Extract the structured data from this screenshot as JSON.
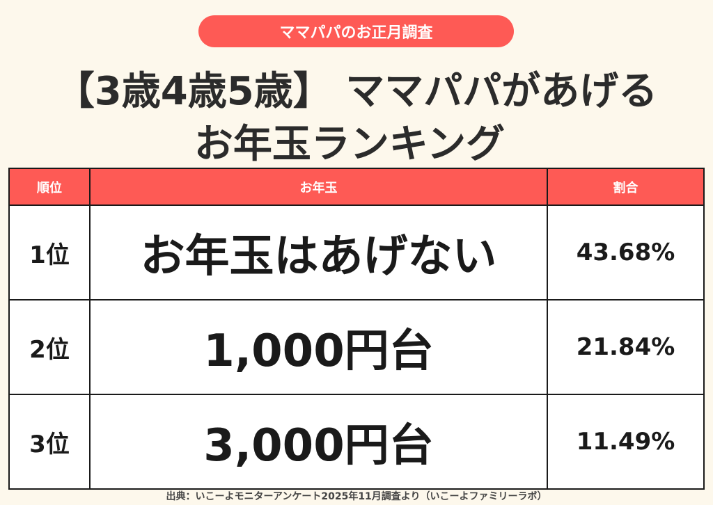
{
  "header_pill": "ママパパのお正月調査",
  "title_line1": "【3歳4歳5歳】 ママパパがあげる",
  "title_line2": "お年玉ランキング",
  "table": {
    "columns": [
      "順位",
      "お年玉",
      "割合"
    ],
    "rows": [
      {
        "rank": "1位",
        "amount": "お年玉はあげない",
        "ratio": "43.68%"
      },
      {
        "rank": "2位",
        "amount": "1,000円台",
        "ratio": "21.84%"
      },
      {
        "rank": "3位",
        "amount": "3,000円台",
        "ratio": "11.49%"
      }
    ]
  },
  "source": "出典：いこーよモニターアンケート2025年11月調査より（いこーよファミリーラボ）",
  "colors": {
    "accent": "#fe5a55",
    "background": "#fdf8ec"
  }
}
